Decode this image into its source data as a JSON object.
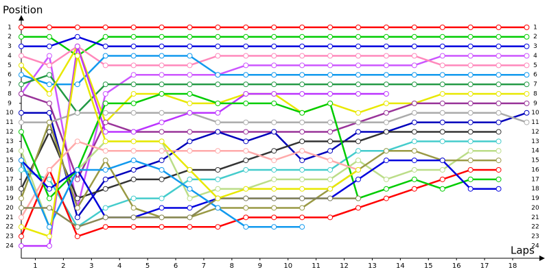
{
  "chart_data": {
    "type": "line",
    "y_label": "Position",
    "x_label": "Laps",
    "x": [
      0,
      1,
      2,
      3,
      4,
      5,
      6,
      7,
      8,
      9,
      10,
      11,
      12,
      13,
      14,
      15,
      16,
      17,
      18
    ],
    "xlim": [
      0,
      18.55
    ],
    "xticks": [
      {
        "value": 0.5,
        "label": "1"
      },
      {
        "value": 1.5,
        "label": "2"
      },
      {
        "value": 2.5,
        "label": "3"
      },
      {
        "value": 3.5,
        "label": "4"
      },
      {
        "value": 4.5,
        "label": "5"
      },
      {
        "value": 5.5,
        "label": "6"
      },
      {
        "value": 6.5,
        "label": "7"
      },
      {
        "value": 7.5,
        "label": "8"
      },
      {
        "value": 8.5,
        "label": "9"
      },
      {
        "value": 9.5,
        "label": "10"
      },
      {
        "value": 10.5,
        "label": "11"
      },
      {
        "value": 11.5,
        "label": "12"
      },
      {
        "value": 12.5,
        "label": "13"
      },
      {
        "value": 13.5,
        "label": "14"
      },
      {
        "value": 14.5,
        "label": "15"
      },
      {
        "value": 15.5,
        "label": "16"
      },
      {
        "value": 16.5,
        "label": "17"
      },
      {
        "value": 17.5,
        "label": "18"
      }
    ],
    "ylim": [
      25.3,
      0
    ],
    "yticks": [
      1,
      2,
      3,
      4,
      5,
      6,
      7,
      8,
      9,
      10,
      11,
      12,
      13,
      14,
      15,
      16,
      17,
      18,
      19,
      20,
      21,
      22,
      23,
      24
    ],
    "series": [
      {
        "color": "#ff0000",
        "values": [
          1,
          1,
          1,
          1,
          1,
          1,
          1,
          1,
          1,
          1,
          1,
          1,
          1,
          1,
          1,
          1,
          1,
          1,
          1
        ]
      },
      {
        "color": "#00cc00",
        "values": [
          2,
          2,
          4,
          2,
          2,
          2,
          2,
          2,
          2,
          2,
          2,
          2,
          2,
          2,
          2,
          2,
          2,
          2,
          2
        ]
      },
      {
        "color": "#0000dd",
        "values": [
          3,
          3,
          2,
          3,
          3,
          3,
          3,
          3,
          3,
          3,
          3,
          3,
          3,
          3,
          3,
          3,
          3,
          3,
          3
        ]
      },
      {
        "color": "#cc55ff",
        "values": [
          8,
          4,
          20,
          8,
          6,
          6,
          6,
          6,
          5,
          5,
          5,
          5,
          5,
          5,
          5,
          4,
          4,
          4,
          4
        ]
      },
      {
        "color": "#ff88bb",
        "values": [
          4,
          5,
          3,
          5,
          5,
          5,
          5,
          4,
          4,
          4,
          4,
          4,
          4,
          4,
          4,
          5,
          5,
          5,
          5
        ]
      },
      {
        "color": "#1199ee",
        "values": [
          6,
          7,
          7,
          4,
          4,
          4,
          4,
          6,
          6,
          6,
          6,
          6,
          6,
          6,
          6,
          6,
          6,
          6,
          6
        ]
      },
      {
        "color": "#229944",
        "values": [
          7,
          6,
          10,
          7,
          7,
          7,
          7,
          7,
          7,
          7,
          7,
          7,
          7,
          7,
          7,
          7,
          7,
          7,
          7
        ]
      },
      {
        "color": "#e8e800",
        "values": [
          5,
          8,
          3,
          11,
          8,
          8,
          9,
          9,
          8,
          8,
          10,
          9,
          10,
          9,
          9,
          8,
          8,
          8,
          8
        ]
      },
      {
        "color": "#993399",
        "values": [
          8,
          9,
          17,
          11,
          12,
          12,
          12,
          12,
          12,
          12,
          12,
          12,
          11,
          10,
          9,
          9,
          9,
          9,
          9
        ]
      },
      {
        "color": "#0000bb",
        "values": [
          10,
          10,
          21,
          17,
          16,
          15,
          13,
          12,
          13,
          12,
          15,
          14,
          12,
          12,
          11,
          11,
          11,
          11,
          10
        ]
      },
      {
        "color": "#aaaaaa",
        "values": [
          11,
          11,
          10,
          10,
          10,
          10,
          10,
          11,
          11,
          11,
          11,
          11,
          11,
          11,
          10,
          10,
          10,
          10,
          11
        ]
      },
      {
        "color": "#bb33ff",
        "values": [
          24,
          24,
          3,
          12,
          12,
          11,
          10,
          10,
          8,
          8,
          8,
          8,
          8,
          8,
          null,
          null,
          null,
          null,
          null
        ]
      },
      {
        "color": "#333333",
        "values": [
          18,
          12,
          19,
          18,
          17,
          17,
          16,
          16,
          15,
          14,
          13,
          13,
          13,
          12,
          12,
          12,
          12,
          12,
          null
        ]
      },
      {
        "color": "#44cccc",
        "values": [
          16,
          17,
          22,
          20,
          19,
          19,
          17,
          17,
          16,
          16,
          16,
          16,
          14,
          14,
          13,
          13,
          13,
          13,
          null
        ]
      },
      {
        "color": "#bbdd88",
        "values": [
          14,
          22,
          16,
          13,
          13,
          13,
          19,
          18,
          18,
          17,
          17,
          17,
          15,
          17,
          16,
          16,
          14,
          14,
          null
        ]
      },
      {
        "color": "#999944",
        "values": [
          19,
          11,
          20,
          15,
          20,
          21,
          21,
          20,
          20,
          20,
          20,
          18,
          16,
          14,
          14,
          15,
          15,
          15,
          null
        ]
      },
      {
        "color": "#ff0000",
        "values": [
          23,
          16,
          23,
          22,
          22,
          22,
          22,
          22,
          21,
          21,
          21,
          21,
          20,
          19,
          18,
          17,
          16,
          16,
          null
        ]
      },
      {
        "color": "#00cc00",
        "values": [
          12,
          19,
          16,
          9,
          9,
          8,
          8,
          9,
          9,
          9,
          10,
          9,
          19,
          18,
          17,
          18,
          17,
          17,
          null
        ]
      },
      {
        "color": "#0000dd",
        "values": [
          15,
          18,
          16,
          21,
          21,
          20,
          20,
          19,
          19,
          19,
          19,
          19,
          17,
          15,
          15,
          15,
          18,
          18,
          null
        ]
      },
      {
        "color": "#ffaaaa",
        "values": [
          21,
          16,
          13,
          14,
          14,
          14,
          14,
          14,
          14,
          15,
          14,
          15,
          16,
          null,
          null,
          null,
          null,
          null,
          null
        ]
      },
      {
        "color": "#1199ee",
        "values": [
          15,
          22,
          16,
          16,
          15,
          16,
          18,
          20,
          22,
          22,
          22,
          null,
          null,
          null,
          null,
          null,
          null,
          null,
          null
        ]
      },
      {
        "color": "#888855",
        "values": [
          20,
          20,
          22,
          21,
          21,
          21,
          21,
          19,
          19,
          19,
          19,
          19,
          19,
          null,
          null,
          null,
          null,
          null,
          null
        ]
      },
      {
        "color": "#e8e800",
        "values": [
          22,
          23,
          4,
          13,
          13,
          13,
          16,
          19,
          18,
          18,
          18,
          18,
          16,
          null,
          null,
          null,
          null,
          null,
          null
        ]
      }
    ]
  }
}
